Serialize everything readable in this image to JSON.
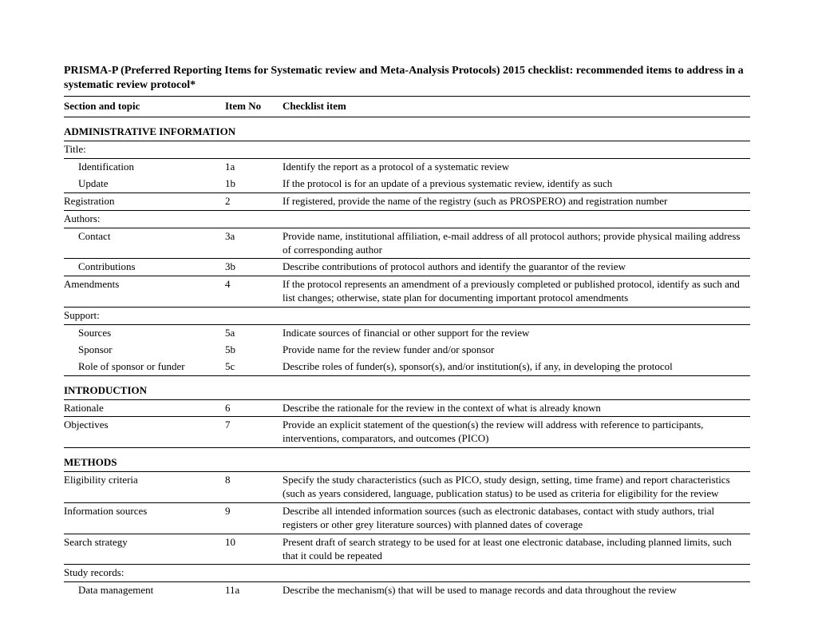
{
  "title": "PRISMA-P (Preferred Reporting Items for Systematic review and Meta-Analysis Protocols) 2015 checklist: recommended items to address in a systematic review protocol*",
  "columns": {
    "topic": "Section and topic",
    "item_no": "Item No",
    "checklist": "Checklist item"
  },
  "sections": {
    "admin": "ADMINISTRATIVE INFORMATION",
    "intro": "INTRODUCTION",
    "methods": "METHODS"
  },
  "rows": {
    "title_group": "Title:",
    "identification": {
      "topic": "Identification",
      "no": "1a",
      "desc": "Identify the report as a protocol of a systematic review"
    },
    "update": {
      "topic": "Update",
      "no": "1b",
      "desc": "If the protocol is for an update of a previous systematic review, identify as such"
    },
    "registration": {
      "topic": "Registration",
      "no": "2",
      "desc": "If registered, provide the name of the registry (such as PROSPERO) and registration number"
    },
    "authors_group": "Authors:",
    "contact": {
      "topic": "Contact",
      "no": "3a",
      "desc": "Provide name, institutional affiliation, e-mail address of all protocol authors; provide physical mailing address of corresponding author"
    },
    "contributions": {
      "topic": "Contributions",
      "no": "3b",
      "desc": "Describe contributions of protocol authors and identify the guarantor of the review"
    },
    "amendments": {
      "topic": "Amendments",
      "no": "4",
      "desc": "If the protocol represents an amendment of a previously completed or published protocol, identify as such and list changes; otherwise, state plan for documenting important protocol amendments"
    },
    "support_group": "Support:",
    "sources": {
      "topic": "Sources",
      "no": "5a",
      "desc": "Indicate sources of financial or other support for the review"
    },
    "sponsor": {
      "topic": "Sponsor",
      "no": "5b",
      "desc": "Provide name for the review funder and/or sponsor"
    },
    "role": {
      "topic": "Role of sponsor or funder",
      "no": "5c",
      "desc": "Describe roles of funder(s), sponsor(s), and/or institution(s), if any, in developing the protocol"
    },
    "rationale": {
      "topic": "Rationale",
      "no": "6",
      "desc": "Describe the rationale for the review in the context of what is already known"
    },
    "objectives": {
      "topic": "Objectives",
      "no": "7",
      "desc": "Provide an explicit statement of the question(s) the review will address with reference to participants, interventions, comparators, and outcomes (PICO)"
    },
    "eligibility": {
      "topic": "Eligibility criteria",
      "no": "8",
      "desc": "Specify the study characteristics (such as PICO, study design, setting, time frame) and report characteristics (such as years considered, language, publication status) to be used as criteria for eligibility for the review"
    },
    "infosources": {
      "topic": "Information sources",
      "no": "9",
      "desc": "Describe all intended information sources (such as electronic databases, contact with study authors, trial registers or other grey literature sources) with planned dates of coverage"
    },
    "search": {
      "topic": "Search strategy",
      "no": "10",
      "desc": "Present draft of search strategy to be used for at least one electronic database, including planned limits, such that it could be repeated"
    },
    "studyrecords_group": "Study records:",
    "datamgmt": {
      "topic": "Data management",
      "no": "11a",
      "desc": "Describe the mechanism(s) that will be used to manage records and data throughout the review"
    }
  }
}
